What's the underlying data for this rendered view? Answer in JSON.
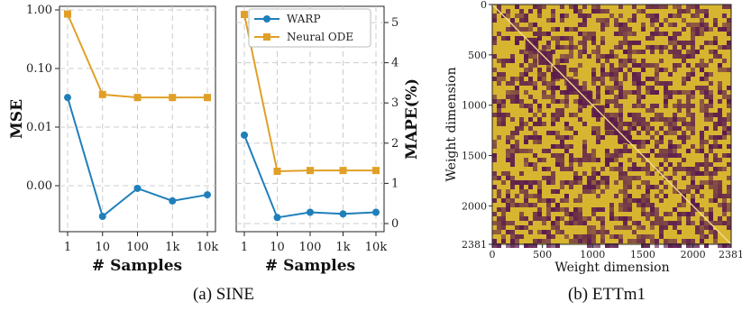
{
  "colors": {
    "warp": "#1f7fba",
    "neural_ode": "#e0a027",
    "grid": "#cccccc",
    "heat_dark": "#5b1a4e",
    "heat_light": "#d8b530"
  },
  "panel_a": {
    "caption": "(a)  SINE",
    "left_ylabel": "MSE",
    "right_ylabel": "MAPE(%)",
    "xlabel": "# Samples",
    "x_ticks": [
      "1",
      "10",
      "100",
      "1k",
      "10k"
    ],
    "left_y_ticks": [
      "1.00",
      "0.10",
      "0.01",
      "0.00"
    ],
    "right_y_ticks": [
      "0",
      "1",
      "2",
      "3",
      "4",
      "5"
    ],
    "legend": [
      "WARP",
      "Neural ODE"
    ]
  },
  "panel_b": {
    "caption": "(b)  ETTm1",
    "xlabel": "Weight dimension",
    "ylabel": "Weight dimension",
    "x_ticks": [
      "0",
      "500",
      "1000",
      "1500",
      "2000",
      "2381"
    ],
    "y_ticks": [
      "0",
      "500",
      "1000",
      "1500",
      "2000",
      "2381"
    ]
  },
  "chart_data": [
    {
      "type": "line",
      "x": [
        "1",
        "10",
        "100",
        "1k",
        "10k"
      ],
      "ylabel": "MSE",
      "xlabel": "# Samples",
      "yscale": "log",
      "ylim": [
        0.0004,
        1.0
      ],
      "series": [
        {
          "name": "WARP",
          "values": [
            0.032,
            0.0003,
            0.0009,
            0.00055,
            0.0007
          ]
        },
        {
          "name": "Neural ODE",
          "values": [
            0.85,
            0.036,
            0.032,
            0.032,
            0.032
          ]
        }
      ]
    },
    {
      "type": "line",
      "x": [
        "1",
        "10",
        "100",
        "1k",
        "10k"
      ],
      "ylabel": "MAPE(%)",
      "xlabel": "# Samples",
      "ylim": [
        -0.2,
        5.4
      ],
      "legend": "top-right",
      "series": [
        {
          "name": "WARP",
          "values": [
            2.2,
            0.15,
            0.28,
            0.24,
            0.28
          ]
        },
        {
          "name": "Neural ODE",
          "values": [
            5.2,
            1.3,
            1.32,
            1.32,
            1.32
          ]
        }
      ]
    },
    {
      "type": "heatmap",
      "xlabel": "Weight dimension",
      "ylabel": "Weight dimension",
      "xlim": [
        0,
        2381
      ],
      "ylim": [
        0,
        2381
      ],
      "pattern": "noisy similarity matrix, bright diagonal line, dark block-diagonal squares near indices 350-1400"
    }
  ]
}
